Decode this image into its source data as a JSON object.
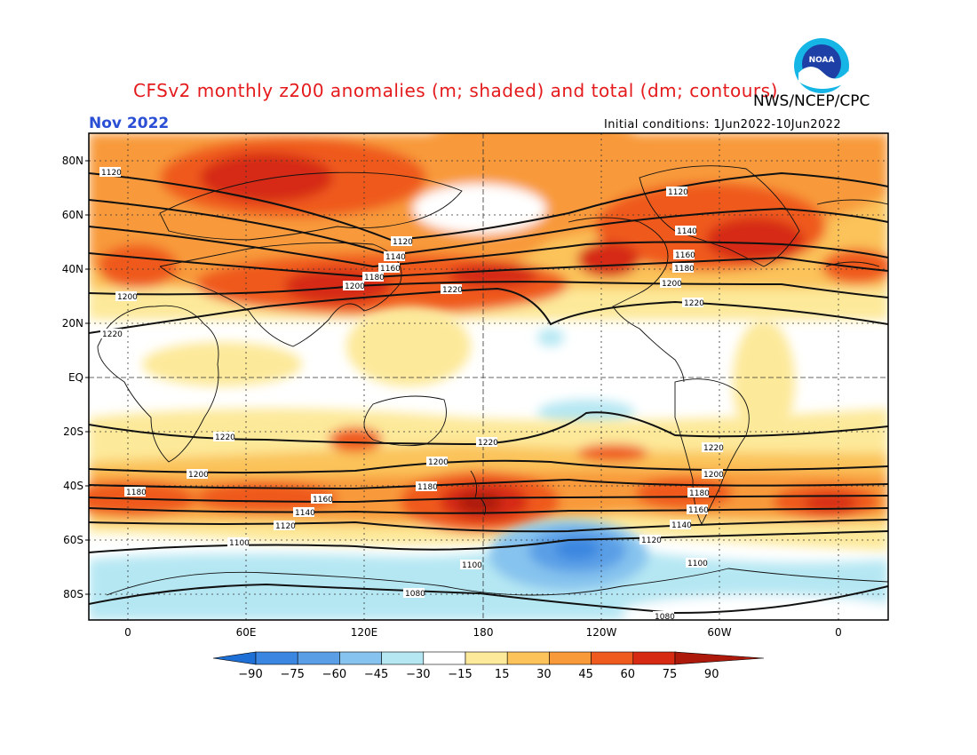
{
  "header": {
    "title": "CFSv2 monthly z200 anomalies (m; shaded) and total (dm; contours)",
    "credit": "NWS/NCEP/CPC",
    "period": "Nov 2022",
    "initial_conditions": "Initial conditions: 1Jun2022-10Jun2022",
    "logo_text": "NOAA"
  },
  "axes": {
    "lat_labels": [
      "80N",
      "60N",
      "40N",
      "20N",
      "EQ",
      "20S",
      "40S",
      "60S",
      "80S"
    ],
    "lon_labels": [
      "0",
      "60E",
      "120E",
      "180",
      "120W",
      "60W",
      "0"
    ]
  },
  "colorbar": {
    "levels": [
      "-90",
      "-75",
      "-60",
      "-45",
      "-30",
      "-15",
      "15",
      "30",
      "45",
      "60",
      "75",
      "90"
    ],
    "colors": [
      "#1e6fd6",
      "#3b86e0",
      "#5a9fe6",
      "#86c3ee",
      "#b5e7f3",
      "#ffffff",
      "#fde99a",
      "#fbc35a",
      "#f89a3a",
      "#ef5a1f",
      "#d62a12",
      "#ad1a0c"
    ]
  },
  "contours": {
    "labels_nh": [
      "1120",
      "1140",
      "1160",
      "1180",
      "1200",
      "1220"
    ],
    "labels_sh": [
      "1220",
      "1200",
      "1180",
      "1160",
      "1140",
      "1120",
      "1100",
      "1080"
    ]
  },
  "colors": {
    "pos_light": "#fde99a",
    "pos_mid": "#fbc35a",
    "pos_strong": "#f89a3a",
    "pos_stronger": "#ef5a1f",
    "pos_max": "#ad1a0c",
    "neg_light": "#b5e7f3",
    "neg_mid": "#86c3ee",
    "neg_strong": "#3b86e0",
    "contour": "#111111"
  }
}
